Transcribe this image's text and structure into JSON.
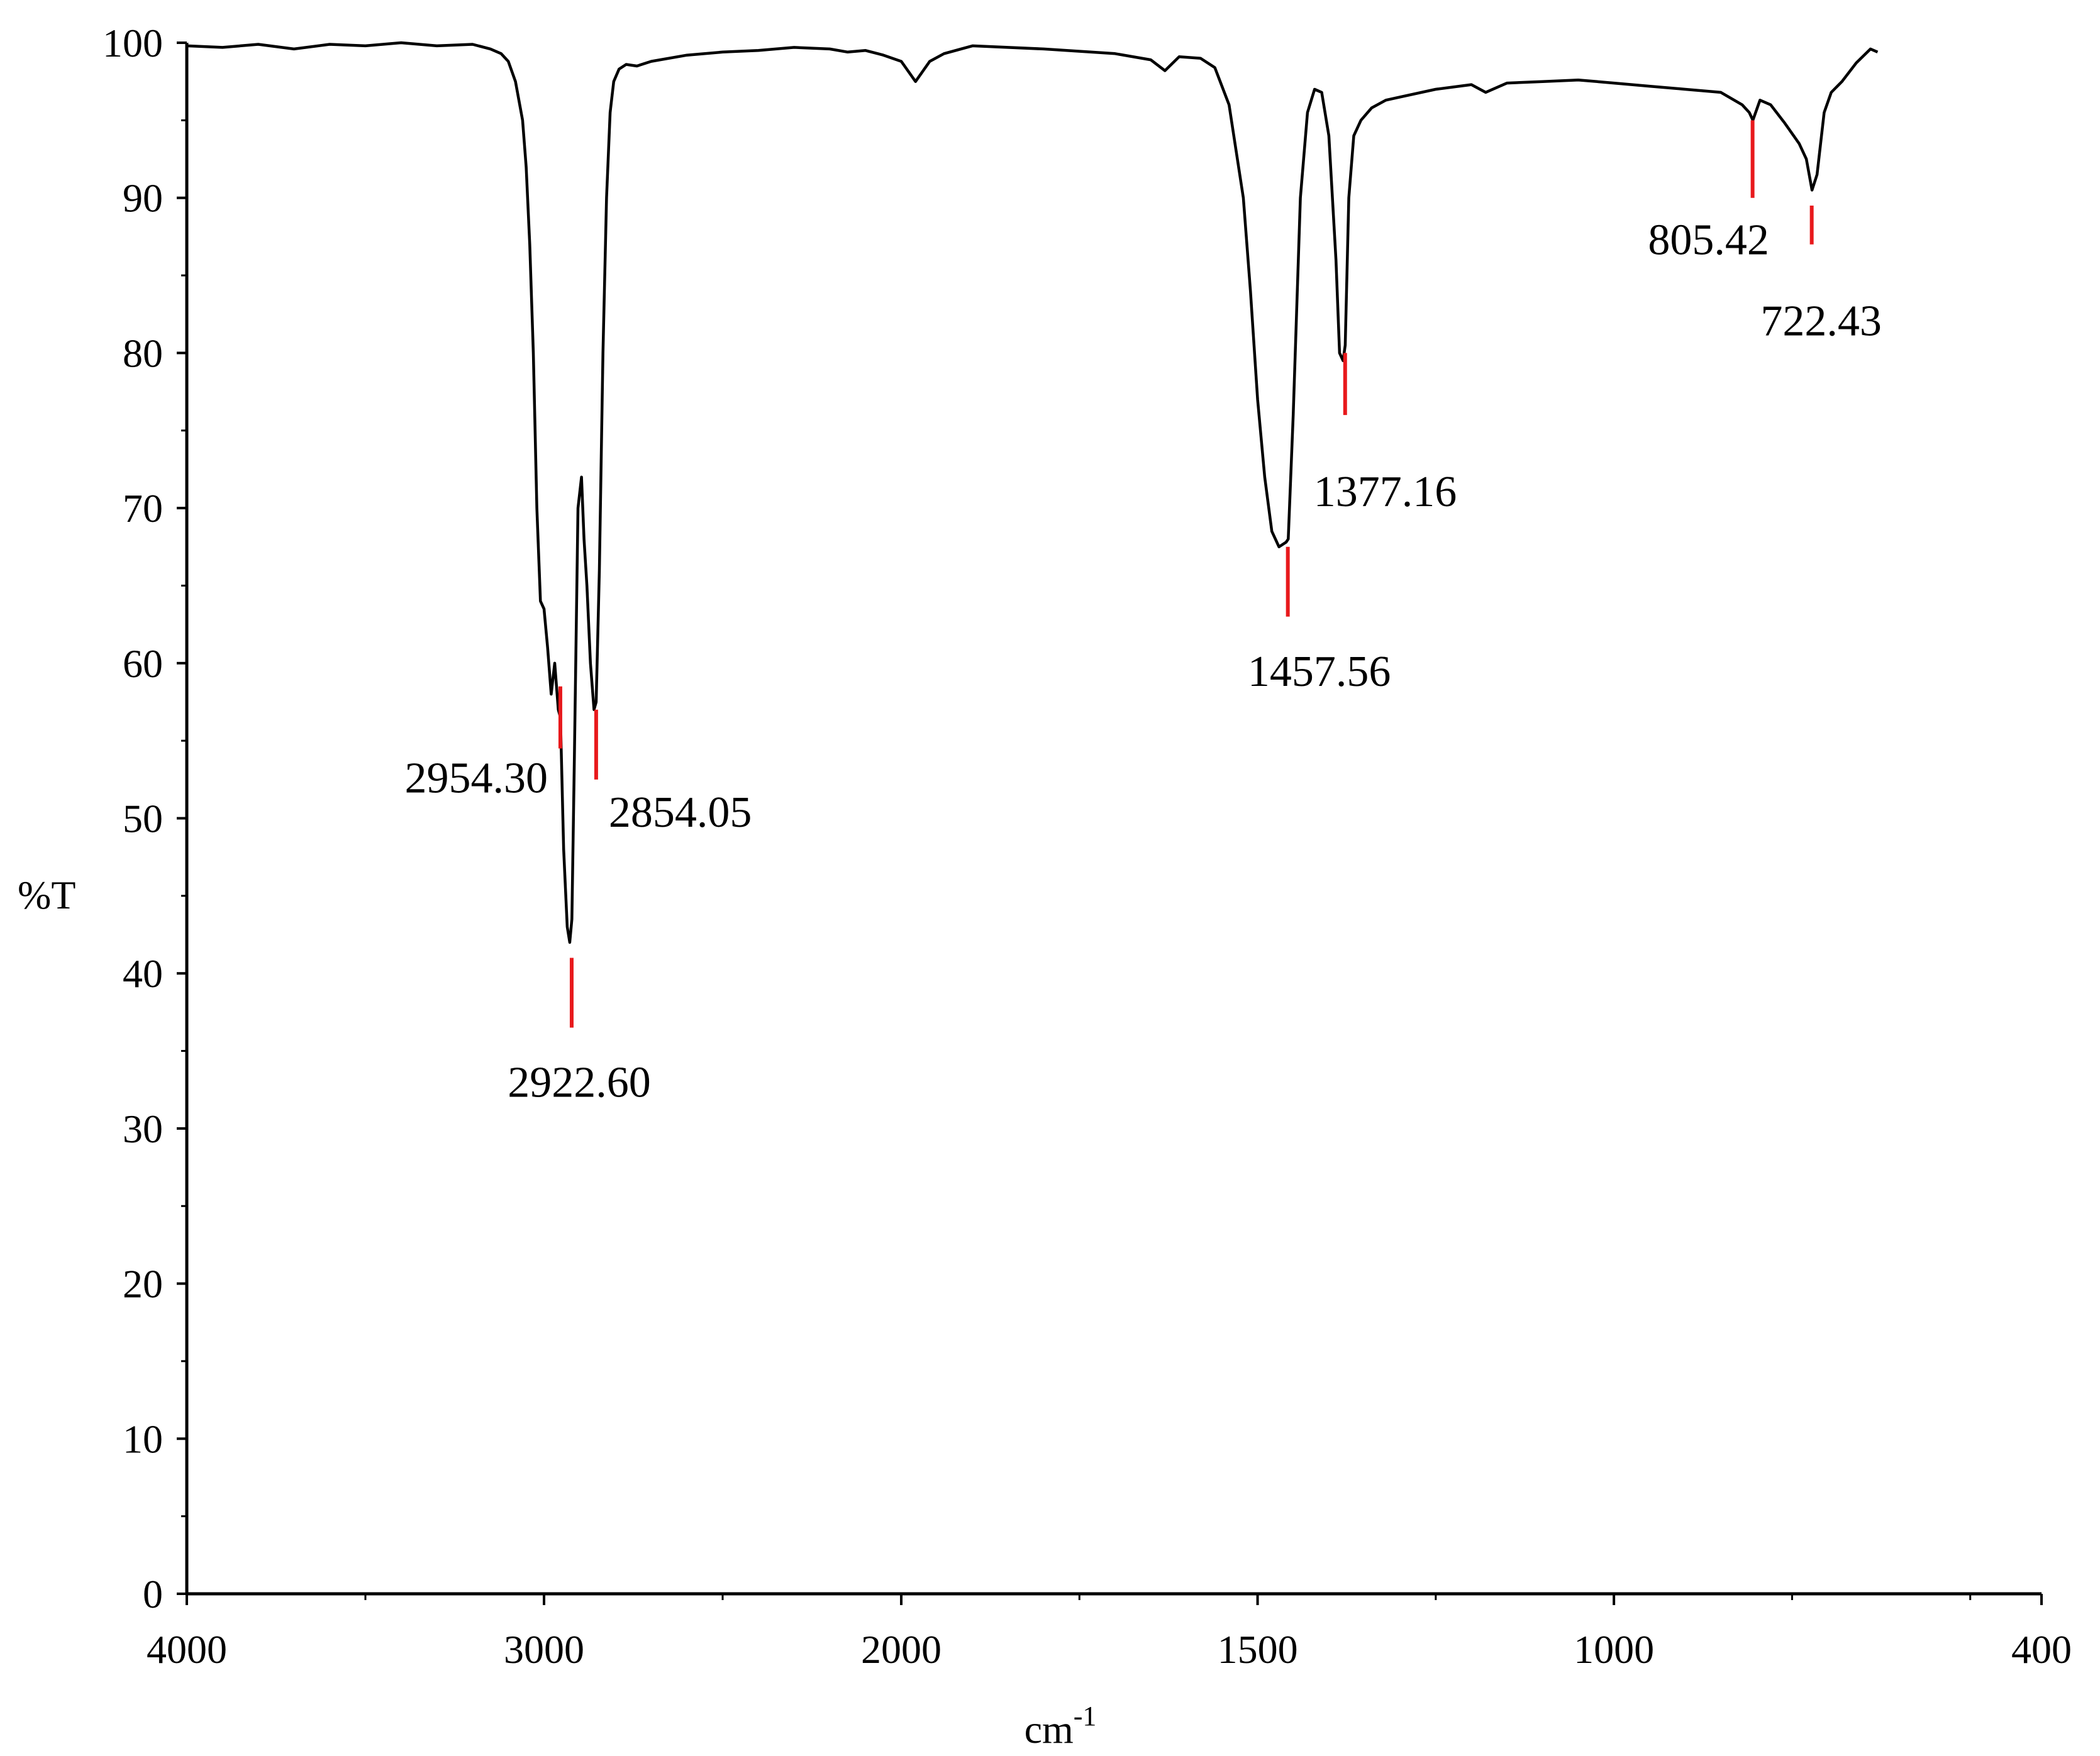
{
  "chart_data": {
    "type": "line",
    "title": "",
    "xlabel": "cm",
    "xlabel_superscript": "-1",
    "ylabel": "%T",
    "xlim": [
      4000,
      400
    ],
    "ylim": [
      0,
      100
    ],
    "x_reversed": true,
    "grid": false,
    "x_ticks": [
      4000,
      3000,
      2000,
      1500,
      1000,
      400
    ],
    "x_tick_labels": [
      "4000",
      "3000",
      "2000",
      "1500",
      "1000",
      "400"
    ],
    "x_minor_ticks": [
      3500,
      2500,
      1750,
      1250,
      750,
      500
    ],
    "y_ticks": [
      0,
      10,
      20,
      30,
      40,
      50,
      60,
      70,
      80,
      90,
      100
    ],
    "y_tick_labels": [
      "0",
      "10",
      "20",
      "30",
      "40",
      "50",
      "60",
      "70",
      "80",
      "90",
      "100"
    ],
    "colors": {
      "spectrum": "#000000",
      "peak_marker": "#e8191c",
      "axis": "#000000"
    },
    "series": [
      {
        "x": [
          4000,
          3900,
          3800,
          3700,
          3600,
          3500,
          3400,
          3300,
          3200,
          3150,
          3120,
          3100,
          3080,
          3060,
          3050,
          3040,
          3030,
          3020,
          3010,
          3000,
          2990,
          2980,
          2970,
          2960,
          2954,
          2945,
          2935,
          2928,
          2922,
          2915,
          2905,
          2895,
          2888,
          2880,
          2870,
          2860,
          2854,
          2845,
          2835,
          2825,
          2815,
          2805,
          2790,
          2770,
          2740,
          2700,
          2600,
          2500,
          2400,
          2300,
          2200,
          2150,
          2100,
          2050,
          2000,
          1980,
          1960,
          1940,
          1900,
          1800,
          1700,
          1650,
          1630,
          1610,
          1580,
          1560,
          1540,
          1520,
          1510,
          1500,
          1490,
          1480,
          1470,
          1460,
          1457,
          1450,
          1440,
          1430,
          1420,
          1410,
          1400,
          1390,
          1385,
          1380,
          1377,
          1372,
          1365,
          1355,
          1340,
          1320,
          1300,
          1250,
          1200,
          1180,
          1150,
          1100,
          1050,
          1000,
          950,
          900,
          850,
          820,
          810,
          805,
          795,
          780,
          760,
          740,
          730,
          722,
          715,
          705,
          695,
          680,
          660,
          640,
          630
        ],
        "y": [
          99.8,
          99.7,
          99.9,
          99.6,
          99.9,
          99.8,
          100.0,
          99.8,
          99.9,
          99.6,
          99.3,
          98.8,
          97.5,
          95.0,
          92.0,
          87.0,
          80.0,
          70.0,
          64.0,
          63.5,
          61.0,
          58.0,
          60.0,
          57.0,
          56.5,
          48.0,
          43.0,
          42.0,
          43.5,
          54.0,
          70.0,
          72.0,
          68.0,
          65.0,
          60.0,
          57.0,
          57.5,
          66.0,
          80.0,
          90.0,
          95.5,
          97.5,
          98.3,
          98.6,
          98.5,
          98.8,
          99.2,
          99.4,
          99.5,
          99.7,
          99.6,
          99.4,
          99.5,
          99.2,
          98.8,
          97.5,
          98.8,
          99.3,
          99.8,
          99.6,
          99.3,
          98.9,
          98.2,
          99.1,
          99.0,
          98.4,
          96.0,
          90.0,
          84.0,
          77.0,
          72.0,
          68.5,
          67.5,
          67.8,
          68.0,
          76.0,
          90.0,
          95.5,
          97.0,
          96.8,
          94.0,
          86.0,
          80.0,
          79.5,
          80.5,
          90.0,
          94.0,
          95.0,
          95.8,
          96.3,
          96.5,
          97.0,
          97.3,
          96.8,
          97.4,
          97.5,
          97.6,
          97.4,
          97.2,
          97.0,
          96.8,
          96.0,
          95.5,
          95.0,
          96.3,
          96.0,
          94.8,
          93.5,
          92.5,
          90.5,
          91.5,
          95.5,
          96.8,
          97.5,
          98.7,
          99.6,
          99.4
        ]
      }
    ],
    "peaks": [
      {
        "x": 2954.3,
        "y_top": 58.5,
        "y_bottom": 54.5,
        "label": "2954.30"
      },
      {
        "x": 2922.6,
        "y_top": 41.0,
        "y_bottom": 36.5,
        "label": "2922.60"
      },
      {
        "x": 2854.05,
        "y_top": 57.0,
        "y_bottom": 52.5,
        "label": "2854.05"
      },
      {
        "x": 1457.56,
        "y_top": 67.5,
        "y_bottom": 63.0,
        "label": "1457.56"
      },
      {
        "x": 1377.16,
        "y_top": 80.0,
        "y_bottom": 76.0,
        "label": "1377.16"
      },
      {
        "x": 805.42,
        "y_top": 95.0,
        "y_bottom": 90.0,
        "label": "805.42"
      },
      {
        "x": 722.43,
        "y_top": 89.5,
        "y_bottom": 87.0,
        "label": "722.43"
      }
    ]
  }
}
